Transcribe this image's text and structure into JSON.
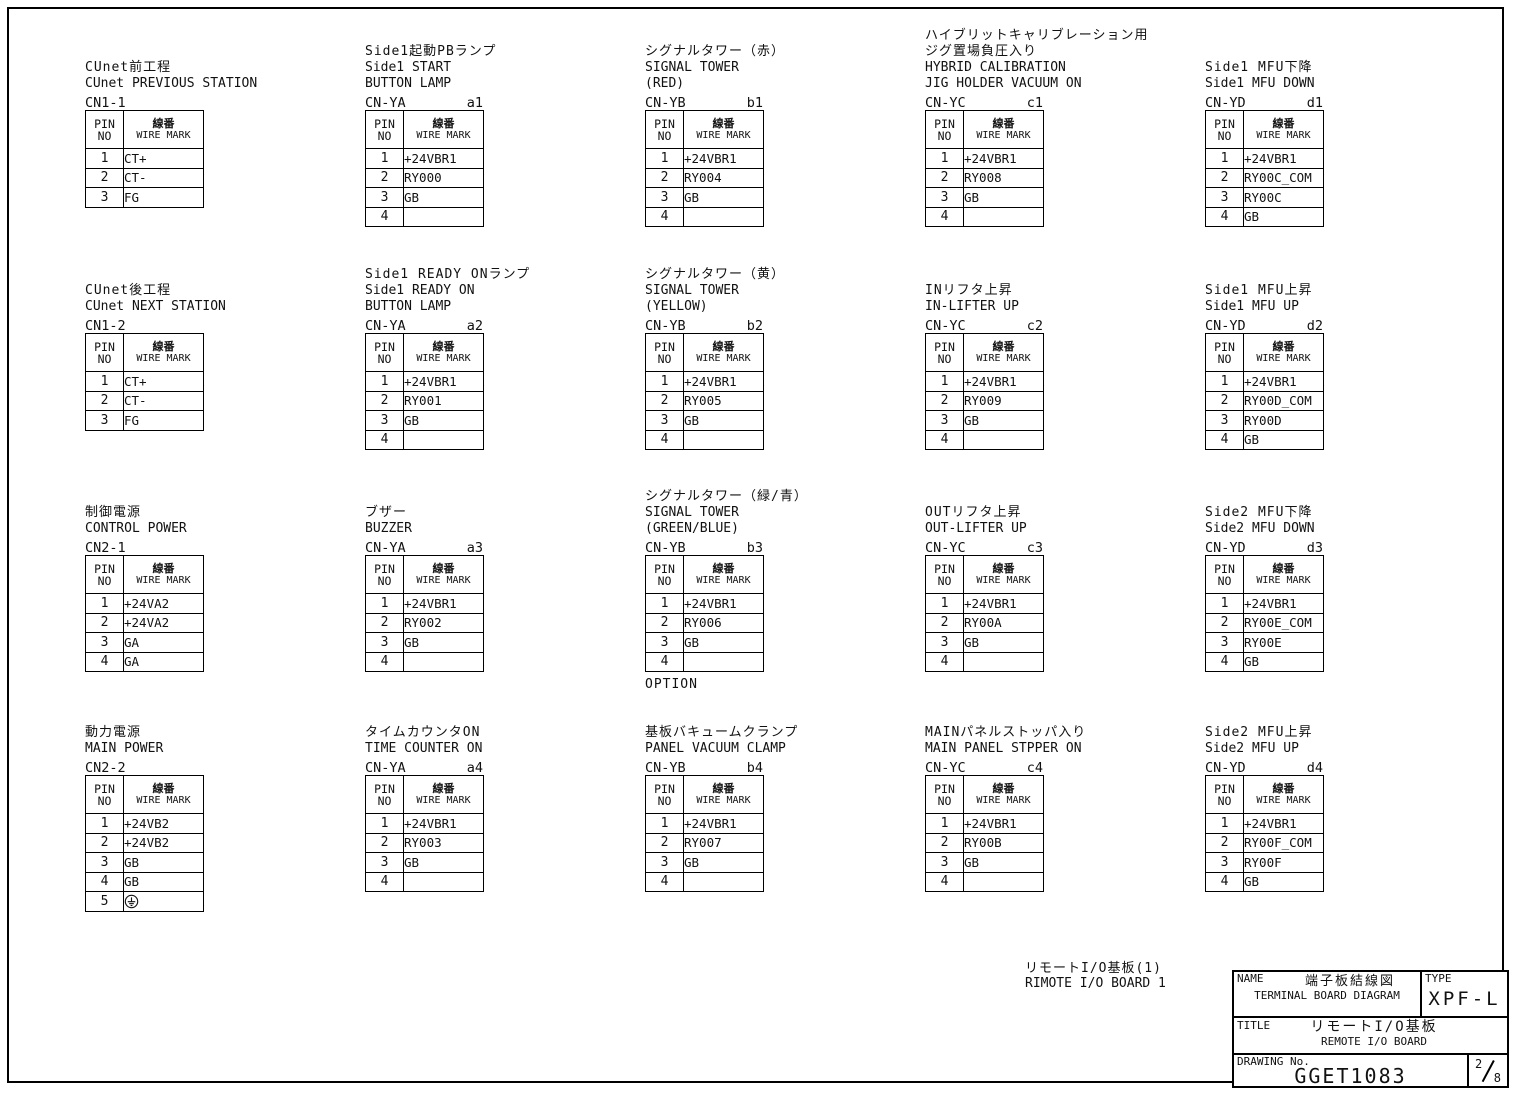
{
  "table_header": {
    "pin_line1": "PIN",
    "pin_line2": "NO",
    "wire_ja": "線番",
    "wire_en": "WIRE MARK"
  },
  "blocks": [
    {
      "connector": "CN1-1",
      "suffix": "",
      "title_lines": [
        "CUnet前工程",
        "CUnet PREVIOUS STATION"
      ],
      "rows": [
        [
          "1",
          "CT+"
        ],
        [
          "2",
          "CT-"
        ],
        [
          "3",
          "FG"
        ]
      ],
      "footer": ""
    },
    {
      "connector": "CN1-2",
      "suffix": "",
      "title_lines": [
        "CUnet後工程",
        "CUnet NEXT STATION"
      ],
      "rows": [
        [
          "1",
          "CT+"
        ],
        [
          "2",
          "CT-"
        ],
        [
          "3",
          "FG"
        ]
      ],
      "footer": ""
    },
    {
      "connector": "CN2-1",
      "suffix": "",
      "title_lines": [
        "制御電源",
        "CONTROL POWER"
      ],
      "rows": [
        [
          "1",
          "+24VA2"
        ],
        [
          "2",
          "+24VA2"
        ],
        [
          "3",
          "GA"
        ],
        [
          "4",
          "GA"
        ]
      ],
      "footer": ""
    },
    {
      "connector": "CN2-2",
      "suffix": "",
      "title_lines": [
        "動力電源",
        "MAIN POWER"
      ],
      "rows": [
        [
          "1",
          "+24VB2"
        ],
        [
          "2",
          "+24VB2"
        ],
        [
          "3",
          "GB"
        ],
        [
          "4",
          "GB"
        ],
        [
          "5",
          "⏚"
        ]
      ],
      "footer": ""
    },
    {
      "connector": "CN-YA",
      "suffix": "a1",
      "title_lines": [
        "Side1起動PBランプ",
        "Side1 START",
        "BUTTON LAMP"
      ],
      "rows": [
        [
          "1",
          "+24VBR1"
        ],
        [
          "2",
          "RY000"
        ],
        [
          "3",
          "GB"
        ],
        [
          "4",
          ""
        ]
      ],
      "footer": ""
    },
    {
      "connector": "CN-YA",
      "suffix": "a2",
      "title_lines": [
        "Side1 READY ONランプ",
        "Side1 READY ON",
        "BUTTON LAMP"
      ],
      "rows": [
        [
          "1",
          "+24VBR1"
        ],
        [
          "2",
          "RY001"
        ],
        [
          "3",
          "GB"
        ],
        [
          "4",
          ""
        ]
      ],
      "footer": ""
    },
    {
      "connector": "CN-YA",
      "suffix": "a3",
      "title_lines": [
        "ブザー",
        "BUZZER"
      ],
      "rows": [
        [
          "1",
          "+24VBR1"
        ],
        [
          "2",
          "RY002"
        ],
        [
          "3",
          "GB"
        ],
        [
          "4",
          ""
        ]
      ],
      "footer": ""
    },
    {
      "connector": "CN-YA",
      "suffix": "a4",
      "title_lines": [
        "タイムカウンタON",
        "TIME COUNTER ON"
      ],
      "rows": [
        [
          "1",
          "+24VBR1"
        ],
        [
          "2",
          "RY003"
        ],
        [
          "3",
          "GB"
        ],
        [
          "4",
          ""
        ]
      ],
      "footer": ""
    },
    {
      "connector": "CN-YB",
      "suffix": "b1",
      "title_lines": [
        "シグナルタワー（赤）",
        "SIGNAL TOWER",
        "(RED)"
      ],
      "rows": [
        [
          "1",
          "+24VBR1"
        ],
        [
          "2",
          "RY004"
        ],
        [
          "3",
          "GB"
        ],
        [
          "4",
          ""
        ]
      ],
      "footer": ""
    },
    {
      "connector": "CN-YB",
      "suffix": "b2",
      "title_lines": [
        "シグナルタワー（黄）",
        "SIGNAL TOWER",
        "(YELLOW)"
      ],
      "rows": [
        [
          "1",
          "+24VBR1"
        ],
        [
          "2",
          "RY005"
        ],
        [
          "3",
          "GB"
        ],
        [
          "4",
          ""
        ]
      ],
      "footer": ""
    },
    {
      "connector": "CN-YB",
      "suffix": "b3",
      "title_lines": [
        "シグナルタワー（緑/青）",
        "SIGNAL TOWER",
        "(GREEN/BLUE)"
      ],
      "rows": [
        [
          "1",
          "+24VBR1"
        ],
        [
          "2",
          "RY006"
        ],
        [
          "3",
          "GB"
        ],
        [
          "4",
          ""
        ]
      ],
      "footer": "OPTION"
    },
    {
      "connector": "CN-YB",
      "suffix": "b4",
      "title_lines": [
        "基板バキュームクランプ",
        "PANEL VACUUM CLAMP"
      ],
      "rows": [
        [
          "1",
          "+24VBR1"
        ],
        [
          "2",
          "RY007"
        ],
        [
          "3",
          "GB"
        ],
        [
          "4",
          ""
        ]
      ],
      "footer": ""
    },
    {
      "connector": "CN-YC",
      "suffix": "c1",
      "title_lines": [
        "ハイブリットキャリブレーション用",
        "ジグ置場負圧入り",
        "HYBRID CALIBRATION",
        "JIG HOLDER VACUUM ON"
      ],
      "rows": [
        [
          "1",
          "+24VBR1"
        ],
        [
          "2",
          "RY008"
        ],
        [
          "3",
          "GB"
        ],
        [
          "4",
          ""
        ]
      ],
      "footer": ""
    },
    {
      "connector": "CN-YC",
      "suffix": "c2",
      "title_lines": [
        "INリフタ上昇",
        "IN-LIFTER UP"
      ],
      "rows": [
        [
          "1",
          "+24VBR1"
        ],
        [
          "2",
          "RY009"
        ],
        [
          "3",
          "GB"
        ],
        [
          "4",
          ""
        ]
      ],
      "footer": ""
    },
    {
      "connector": "CN-YC",
      "suffix": "c3",
      "title_lines": [
        "OUTリフタ上昇",
        "OUT-LIFTER UP"
      ],
      "rows": [
        [
          "1",
          "+24VBR1"
        ],
        [
          "2",
          "RY00A"
        ],
        [
          "3",
          "GB"
        ],
        [
          "4",
          ""
        ]
      ],
      "footer": ""
    },
    {
      "connector": "CN-YC",
      "suffix": "c4",
      "title_lines": [
        "MAINパネルストッパ入り",
        "MAIN PANEL STPPER ON"
      ],
      "rows": [
        [
          "1",
          "+24VBR1"
        ],
        [
          "2",
          "RY00B"
        ],
        [
          "3",
          "GB"
        ],
        [
          "4",
          ""
        ]
      ],
      "footer": ""
    },
    {
      "connector": "CN-YD",
      "suffix": "d1",
      "title_lines": [
        "Side1 MFU下降",
        "Side1 MFU DOWN"
      ],
      "rows": [
        [
          "1",
          "+24VBR1"
        ],
        [
          "2",
          "RY00C_COM"
        ],
        [
          "3",
          "RY00C"
        ],
        [
          "4",
          "GB"
        ]
      ],
      "footer": ""
    },
    {
      "connector": "CN-YD",
      "suffix": "d2",
      "title_lines": [
        "Side1 MFU上昇",
        "Side1 MFU UP"
      ],
      "rows": [
        [
          "1",
          "+24VBR1"
        ],
        [
          "2",
          "RY00D_COM"
        ],
        [
          "3",
          "RY00D"
        ],
        [
          "4",
          "GB"
        ]
      ],
      "footer": ""
    },
    {
      "connector": "CN-YD",
      "suffix": "d3",
      "title_lines": [
        "Side2 MFU下降",
        "Side2 MFU DOWN"
      ],
      "rows": [
        [
          "1",
          "+24VBR1"
        ],
        [
          "2",
          "RY00E_COM"
        ],
        [
          "3",
          "RY00E"
        ],
        [
          "4",
          "GB"
        ]
      ],
      "footer": ""
    },
    {
      "connector": "CN-YD",
      "suffix": "d4",
      "title_lines": [
        "Side2 MFU上昇",
        "Side2 MFU UP"
      ],
      "rows": [
        [
          "1",
          "+24VBR1"
        ],
        [
          "2",
          "RY00F_COM"
        ],
        [
          "3",
          "RY00F"
        ],
        [
          "4",
          "GB"
        ]
      ],
      "footer": ""
    }
  ],
  "note": {
    "ja": "リモートI/O基板(1)",
    "en": "RIMOTE I/O BOARD 1"
  },
  "title_block": {
    "name_label": "NAME",
    "name_ja": "端子板結線図",
    "name_en": "TERMINAL BOARD DIAGRAM",
    "type_label": "TYPE",
    "type_value": "XPF-L",
    "title_label": "TITLE",
    "title_ja": "リモートI/O基板",
    "title_en": "REMOTE I/O BOARD",
    "drawing_label": "DRAWING No.",
    "drawing_no": "GGET1083",
    "page_num": "2",
    "page_den": "8"
  },
  "icons": {
    "earth_symbol": "⏚"
  },
  "colors": {
    "ink": "#111111",
    "paper": "#ffffff"
  }
}
